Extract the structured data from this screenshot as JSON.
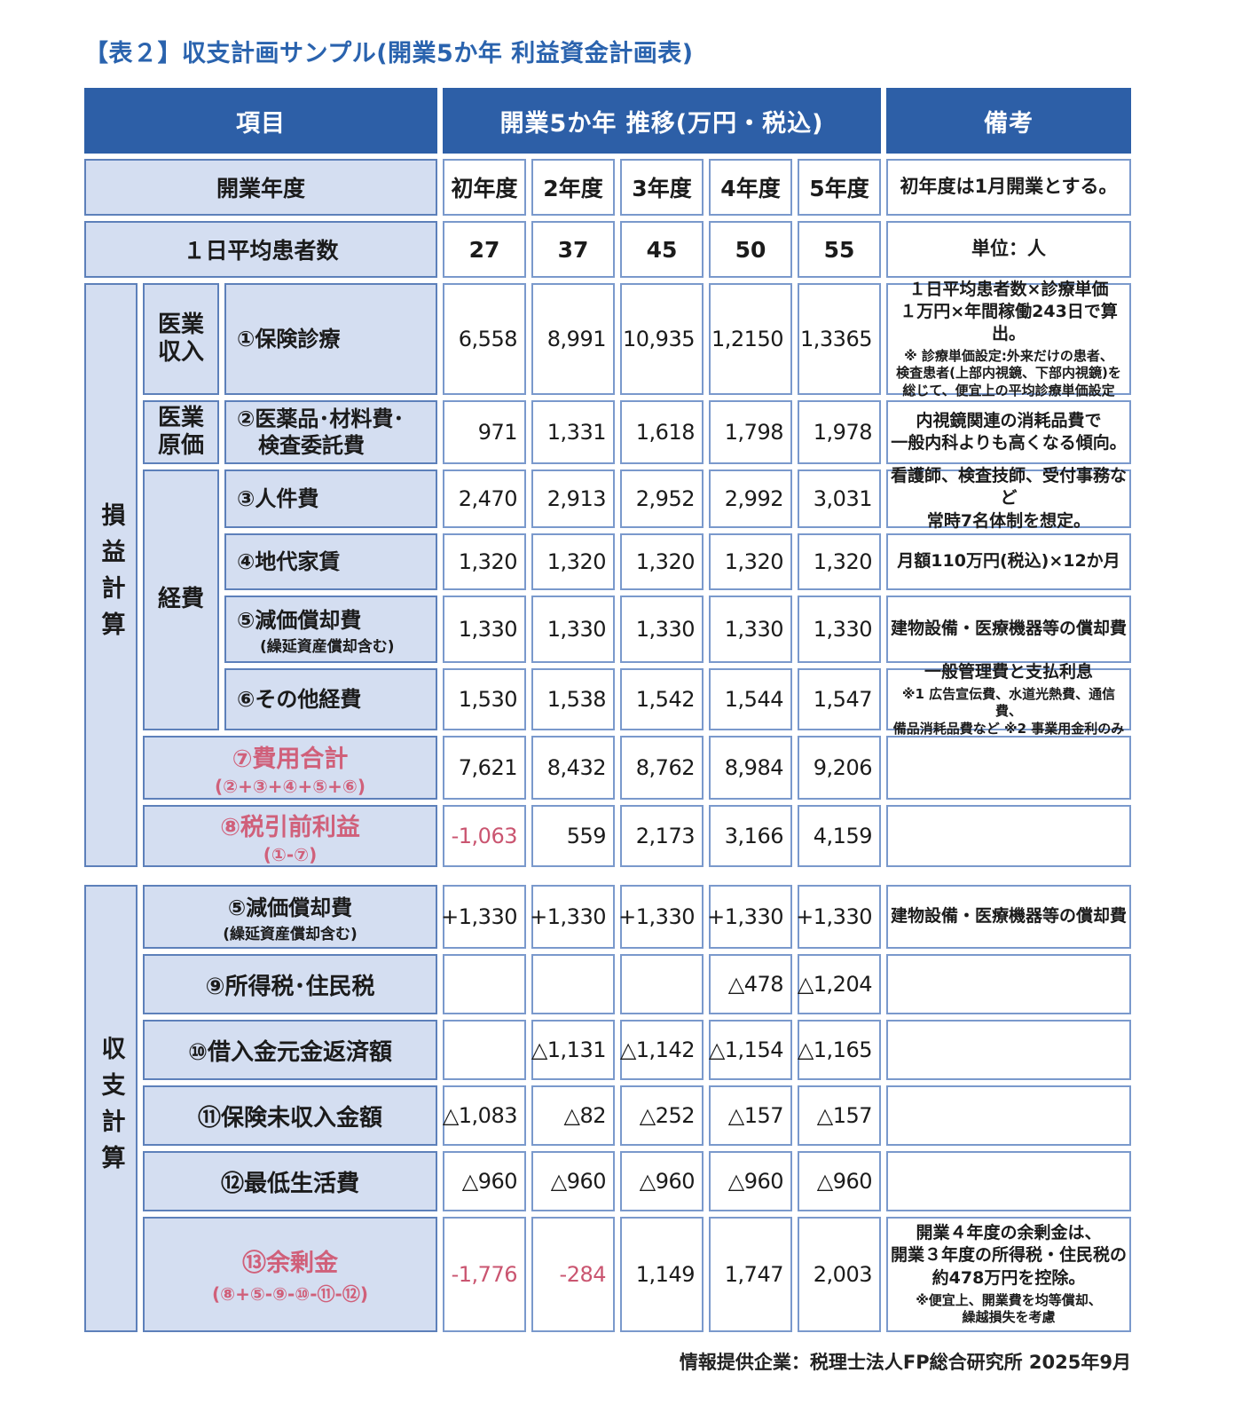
{
  "colors": {
    "header_bg": "#2d5fa7",
    "label_bg": "#d4def1",
    "label_border": "#5d80ba",
    "cell_border": "#7a99cc",
    "accent_pink": "#d0607a",
    "neg_red": "#ca5570",
    "title_blue": "#2a63ae"
  },
  "title": "【表２】収支計画サンプル(開業5か年 利益資金計画表)",
  "footer": "情報提供企業：税理士法人FP総合研究所 2025年9月",
  "header": {
    "item": "項目",
    "trend": "開業5か年 推移(万円・税込)",
    "remark": "備考"
  },
  "sections": {
    "pl": "損益計算",
    "cf": "収支計算",
    "revenue": "医業\n収入",
    "cost": "医業\n原価",
    "expense": "経費"
  },
  "year_row": {
    "label": "開業年度",
    "values": [
      "初年度",
      "2年度",
      "3年度",
      "4年度",
      "5年度"
    ],
    "remark": "初年度は1月開業とする。"
  },
  "patients_row": {
    "label": "１日平均患者数",
    "values": [
      "27",
      "37",
      "45",
      "50",
      "55"
    ],
    "remark": "単位：人"
  },
  "rows": {
    "insurance": {
      "label": "①保険診療",
      "values": [
        "6,558",
        "8,991",
        "10,935",
        "1,2150",
        "1,3365"
      ],
      "remark": "１日平均患者数×診療単価\n１万円×年間稼働243日で算出。",
      "note": "※ 診療単価設定:外来だけの患者、\n検査患者(上部内視鏡、下部内視鏡)を\n総じて、便宜上の平均診療単価設定"
    },
    "materials": {
      "label": "②医薬品･材料費･\n　検査委託費",
      "values": [
        "971",
        "1,331",
        "1,618",
        "1,798",
        "1,978"
      ],
      "remark": "内視鏡関連の消耗品費で\n一般内科よりも高くなる傾向。"
    },
    "personnel": {
      "label": "③人件費",
      "values": [
        "2,470",
        "2,913",
        "2,952",
        "2,992",
        "3,031"
      ],
      "remark": "看護師、検査技師、受付事務など\n常時7名体制を想定。"
    },
    "rent": {
      "label": "④地代家賃",
      "values": [
        "1,320",
        "1,320",
        "1,320",
        "1,320",
        "1,320"
      ],
      "remark": "月額110万円(税込)×12か月"
    },
    "depreciation": {
      "label": "⑤減価償却費",
      "sub": "(繰延資産償却含む)",
      "values": [
        "1,330",
        "1,330",
        "1,330",
        "1,330",
        "1,330"
      ],
      "remark": "建物設備・医療機器等の償却費"
    },
    "other": {
      "label": "⑥その他経費",
      "values": [
        "1,530",
        "1,538",
        "1,542",
        "1,544",
        "1,547"
      ],
      "remark": "一般管理費と支払利息",
      "note": "※1 広告宣伝費、水道光熱費、通信費、\n備品消耗品費など ※2 事業用金利のみ"
    },
    "total_cost": {
      "label": "⑦費用合計",
      "formula": "(②+③+④+⑤+⑥)",
      "values": [
        "7,621",
        "8,432",
        "8,762",
        "8,984",
        "9,206"
      ]
    },
    "pretax": {
      "label": "⑧税引前利益",
      "formula": "(①-⑦)",
      "values": [
        "-1,063",
        "559",
        "2,173",
        "3,166",
        "4,159"
      ]
    },
    "dep_back": {
      "label": "⑤減価償却費",
      "sub": "(繰延資産償却含む)",
      "values": [
        "+1,330",
        "+1,330",
        "+1,330",
        "+1,330",
        "+1,330"
      ],
      "remark": "建物設備・医療機器等の償却費"
    },
    "income_tax": {
      "label": "⑨所得税･住民税",
      "values": [
        "",
        "",
        "",
        "△478",
        "△1,204"
      ]
    },
    "loan": {
      "label": "⑩借入金元金返済額",
      "values": [
        "",
        "△1,131",
        "△1,142",
        "△1,154",
        "△1,165"
      ]
    },
    "uncollected": {
      "label": "⑪保険未収入金額",
      "values": [
        "△1,083",
        "△82",
        "△252",
        "△157",
        "△157"
      ]
    },
    "living": {
      "label": "⑫最低生活費",
      "values": [
        "△960",
        "△960",
        "△960",
        "△960",
        "△960"
      ]
    },
    "surplus": {
      "label": "⑬余剰金",
      "formula": "(⑧+⑤-⑨-⑩-⑪-⑫)",
      "values": [
        "-1,776",
        "-284",
        "1,149",
        "1,747",
        "2,003"
      ],
      "remark": "開業４年度の余剰金は、\n開業３年度の所得税・住民税の\n約478万円を控除。",
      "note": "※便宜上、開業費を均等償却、\n繰越損失を考慮"
    }
  }
}
